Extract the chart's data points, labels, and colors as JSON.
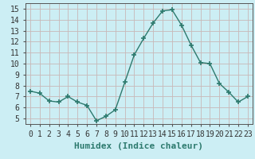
{
  "x": [
    0,
    1,
    2,
    3,
    4,
    5,
    6,
    7,
    8,
    9,
    10,
    11,
    12,
    13,
    14,
    15,
    16,
    17,
    18,
    19,
    20,
    21,
    22,
    23
  ],
  "y": [
    7.5,
    7.3,
    6.6,
    6.5,
    7.0,
    6.5,
    6.2,
    4.8,
    5.2,
    5.8,
    8.3,
    10.8,
    12.3,
    13.7,
    14.8,
    14.9,
    13.5,
    11.7,
    10.1,
    10.0,
    8.2,
    7.4,
    6.5,
    7.0
  ],
  "line_color": "#2d7a6e",
  "marker": "+",
  "marker_size": 5,
  "bg_color": "#cceef4",
  "grid_color": "#c8b8b8",
  "xlabel": "Humidex (Indice chaleur)",
  "xlabel_fontsize": 8,
  "xlim": [
    -0.5,
    23.5
  ],
  "ylim": [
    4.5,
    15.5
  ],
  "yticks": [
    5,
    6,
    7,
    8,
    9,
    10,
    11,
    12,
    13,
    14,
    15
  ],
  "xticks": [
    0,
    1,
    2,
    3,
    4,
    5,
    6,
    7,
    8,
    9,
    10,
    11,
    12,
    13,
    14,
    15,
    16,
    17,
    18,
    19,
    20,
    21,
    22,
    23
  ],
  "tick_fontsize": 7,
  "title_color": "#2d7a6e"
}
